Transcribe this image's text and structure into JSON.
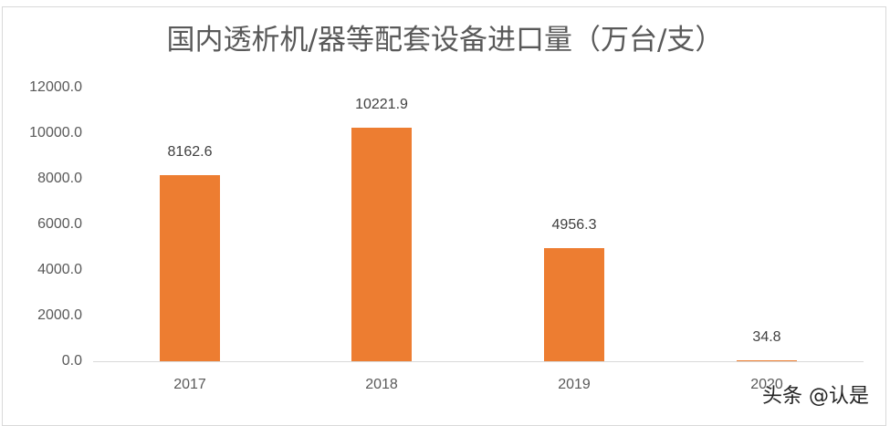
{
  "chart_data": {
    "type": "bar",
    "title": "国内透析机/器等配套设备进口量（万台/支）",
    "categories": [
      "2017",
      "2018",
      "2019",
      "2020"
    ],
    "values": [
      8162.6,
      10221.9,
      4956.3,
      34.8
    ],
    "value_labels": [
      "8162.6",
      "10221.9",
      "4956.3",
      "34.8"
    ],
    "xlabel": "",
    "ylabel": "",
    "ylim": [
      0,
      12000
    ],
    "yticks": [
      "0.0",
      "2000.0",
      "4000.0",
      "6000.0",
      "8000.0",
      "10000.0",
      "12000.0"
    ],
    "grid": false,
    "legend": "none",
    "bar_color": "#ed7d31"
  },
  "watermark": "头条 @认是"
}
